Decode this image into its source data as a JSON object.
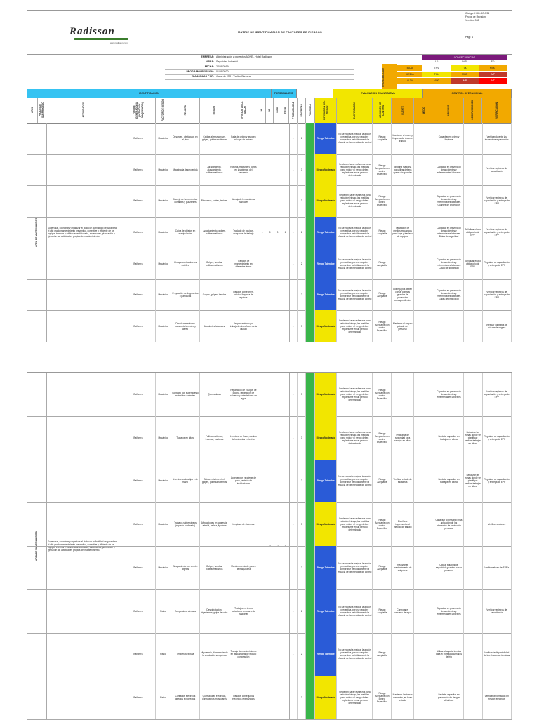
{
  "header": {
    "logo": "Radisson",
    "logo_sub": "www.radisson.com",
    "title": "MATRIZ DE IDENTIFICACION DE FACTORES DE RIESGOS",
    "code": "Código: HSO-SO-P34",
    "revision_date": "Fecha de Revisión:",
    "version": "Versión: 002",
    "page": "Pág.: 1"
  },
  "info": [
    {
      "label": "EMPRESA:",
      "value": "Administración y proyectos ADNE - Hotel Radisson"
    },
    {
      "label": "AREA:",
      "value": "Seguridad Industrial"
    },
    {
      "label": "FECHA:",
      "value": "24/09/2019"
    },
    {
      "label": "PROGRAMA REVISION:",
      "value": "01/09/2020"
    },
    {
      "label": "ELABORADO POR:",
      "value": "Jason de ISO - Yvelice Barbara"
    }
  ],
  "matrix": {
    "side_label": "PROBABILIDAD",
    "top_label": "CONSECUENCIAS",
    "cols": [
      "LD",
      "DAÑ",
      "ED"
    ],
    "rows": [
      {
        "label": "BAJA",
        "cells": [
          "TRV",
          "TOL",
          "MOD"
        ],
        "colors": [
          "#ffffff",
          "#f2e600",
          "#f2a900"
        ]
      },
      {
        "label": "MEDIA",
        "cells": [
          "TOL",
          "MOD",
          "IMP"
        ],
        "colors": [
          "#f2e600",
          "#f2a900",
          "#c0392b"
        ]
      },
      {
        "label": "ALTA",
        "cells": [
          "MOD",
          "IMP",
          "INT"
        ],
        "colors": [
          "#f2a900",
          "#c0392b",
          "#ff0000"
        ]
      }
    ]
  },
  "bands": {
    "identificacion": "IDENTIFICACION",
    "personal": "PERSONAL EXP",
    "evaluacion": "EVALUACION CUANTITATIVA",
    "control": "CONTROL OPERACIONAL"
  },
  "columns": [
    "AREA",
    "PROCESO / SUBPROCESO",
    "ACTIVIDADES",
    "FUENTE GENERADORA (ACTIVIDAD/ MAQUINARIA)",
    "FACTOR DE RIESGO",
    "PELIGRO",
    "RIESGO",
    "EFECTOS DE LA SALUD",
    "H",
    "M",
    "DISC",
    "TOTAL",
    "PROBABILIDAD",
    "SEVERIDAD",
    "PRIORIDAD",
    "ESTIMACION DEL RIESGO",
    "JUSTIFICACION",
    "ACCIONES DE CONTROL",
    "FUENTE",
    "MEDIO",
    "INDIVIDUO",
    "OBSERVACIONES",
    "VERIFICACION"
  ],
  "process": "AREA DE MANTENIMIENTO",
  "activity": "Supervisar, coordinar y organizar el ciclo con la finalidad de garantizar el alto grado mantenimiento preventivo, corrective y eficiente de los equipos internos y edificio acondicionado, ascensores, planeación y ejecución las actividades propias del mantenimiento.",
  "personal": {
    "h": "1",
    "m": "0",
    "disc": "0",
    "total": "1"
  },
  "rows_p1": [
    {
      "fuente": "Bañarera",
      "factor": "Mecánico",
      "peligro": "Desorden, obstáculos en el piso",
      "riesgo": "Caídas al mismo nivel, golpes, politraumatismos",
      "efectos": "Falta de orden y aseo en el lugar de trabajo",
      "prob": "1",
      "sev": "2",
      "est": "Riesgo Tolerable",
      "just": "No se necesita mejorar la acción preventiva, pero se requiere comprobar periódicamente la eficacia de las medidas de control",
      "accion": "Riesgo Aceptable",
      "fuentec": "Mantener el orden y limpieza del área de trabajo",
      "medio": "",
      "indiv": "Capacitar en orden y limpieza",
      "obs": "",
      "verif": "Verificar durante las inspecciones planeadas",
      "color": "b"
    },
    {
      "fuente": "Bañarera",
      "factor": "Mecánico",
      "peligro": "Maquinaria desprotegida",
      "riesgo": "Atrapamiento, atascamiento, politraumatismos",
      "efectos": "Roturas, fracturas y cortes en las piernas del trabajador",
      "prob": "1",
      "sev": "3",
      "est": "Riesgo Moderado",
      "just": "Se deben hacer esfuerzos para reducir el riesgo, las medidas para reducir el riesgo deben implantarse en un periodo determinado",
      "accion": "Riesgo Aceptable con control Específico",
      "fuentec": "Ninguna maquina por utilizar deberá operar sin guardas",
      "medio": "",
      "indiv": "Capacitar en prevención de accidentes y enfermedades laborales",
      "obs": "",
      "verif": "Verificar registros de capacitación",
      "color": "y"
    },
    {
      "fuente": "Bañarera",
      "factor": "Mecánico",
      "peligro": "Manejo de herramientas cortantes y punzantes",
      "riesgo": "Pinchazos, cortes, heridas",
      "efectos": "Manejo de herramientas manuales",
      "prob": "1",
      "sev": "3",
      "est": "Riesgo Moderado",
      "just": "Se deben hacer esfuerzos para reducir el riesgo, las medidas para reducir el riesgo deben implantarse en un periodo determinado",
      "accion": "Riesgo Aceptable con control Específico",
      "fuentec": "",
      "medio": "",
      "indiv": "Capacitar en prevención de accidentes y enfermedades laborales. Guantes de protección",
      "obs": "",
      "verif": "Verificar registros de capacitación y entrega de EPP",
      "color": "y"
    },
    {
      "fuente": "Bañarera",
      "factor": "Mecánico",
      "peligro": "Caída de objetos en manipulación",
      "riesgo": "Aplastamiento, golpes, politraumatismos",
      "efectos": "Traslado de equipos, maquinas de trabajo",
      "prob": "1",
      "sev": "2",
      "est": "Riesgo Tolerable",
      "just": "No se necesita mejorar la acción preventiva, pero se requiere comprobar periódicamente la eficacia de las medidas de control",
      "accion": "Riesgo Aceptable",
      "fuentec": "Utilización de medios mecánicos para izaje y traslado de equipos",
      "medio": "",
      "indiv": "Capacitar en prevención de accidentes y enfermedades laborales. Botas de seguridad",
      "obs": "Señalizar el uso obligatorio de EPP",
      "verif": "Verificar registros de capacitación y entrega de EPP",
      "color": "b"
    },
    {
      "fuente": "Bañarera",
      "factor": "Mecánico",
      "peligro": "Choque contra objetos móviles",
      "riesgo": "Golpes, heridas, politraumatismos",
      "efectos": "Trabajos de mantenimiento en diferentes áreas",
      "prob": "1",
      "sev": "2",
      "est": "Riesgo Tolerable",
      "just": "No se necesita mejorar la acción preventiva, pero se requiere comprobar periódicamente la eficacia de las medidas de control",
      "accion": "Riesgo Aceptable",
      "fuentec": "",
      "medio": "",
      "indiv": "Capacitar en prevención de accidentes y enfermedades laborales. Casco de seguridad",
      "obs": "Señalizar el uso obligatorio de EPP",
      "verif": "Registros de capacitación y entrega de EPP",
      "color": "b"
    },
    {
      "fuente": "Bañarera",
      "factor": "Mecánico",
      "peligro": "Proyección de fragmentos o partículas",
      "riesgo": "Golpes, golpes, heridas",
      "efectos": "Trabajos con esmeril, taladro, limpieza de equipos",
      "prob": "1",
      "sev": "2",
      "est": "Riesgo Tolerable",
      "just": "No se necesita mejorar la acción preventiva, pero se requiere comprobar periódicamente la eficacia de las medidas de control",
      "accion": "Riesgo Aceptable",
      "fuentec": "Los equipos deben contar con sus guardas de protección correspondientes",
      "medio": "",
      "indiv": "Capacitar en prevención de accidentes y enfermedades laborales. Gafas de protección",
      "obs": "",
      "verif": "Verificar registros de capacitación y entrega de EPP",
      "color": "b"
    },
    {
      "fuente": "Bañarera",
      "factor": "Mecánico",
      "peligro": "Desplazamiento en transporte terrestre y aéreo",
      "riesgo": "Accidentes laborales",
      "efectos": "Desplazamiento por trabajo dentro o fuera de la ciudad",
      "prob": "1",
      "sev": "3",
      "est": "Riesgo Moderado",
      "just": "Se deben hacer esfuerzos para reducir el riesgo, las medidas para reducir el riesgo deben implantarse en un periodo determinado",
      "accion": "Riesgo Aceptable con control Específico",
      "fuentec": "Mantener el seguro privado del personal",
      "medio": "",
      "indiv": "",
      "obs": "",
      "verif": "Verificar contratos de pólizas de seguro",
      "color": "y"
    }
  ],
  "rows_p2": [
    {
      "fuente": "Bañarera",
      "factor": "Mecánico",
      "peligro": "Contacto con superficies o materiales calientes",
      "riesgo": "Quemaduras",
      "efectos": "Reparación de equipos de cocina, reparación de calderas y calentadores de agua",
      "prob": "1",
      "sev": "3",
      "est": "Riesgo Moderado",
      "just": "Se deben hacer esfuerzos para reducir el riesgo, las medidas para reducir el riesgo deben implantarse en un periodo determinado",
      "accion": "Riesgo Aceptable con control Específico",
      "fuentec": "",
      "medio": "",
      "indiv": "Capacitar en prevención de accidentes y enfermedades laborales",
      "obs": "",
      "verif": "Verificar registros de capacitación y entrega de EPP",
      "color": "y"
    },
    {
      "fuente": "Bañarera",
      "factor": "Mecánico",
      "peligro": "Trabajos en altura",
      "riesgo": "Politraumatismos, traumas, fracturas",
      "efectos": "Limpieza de fosos, cambio de luminarias en techos",
      "prob": "1",
      "sev": "3",
      "est": "Riesgo Moderado",
      "just": "Se deben hacer esfuerzos para reducir el riesgo, las medidas para reducir el riesgo deben implantarse en un periodo determinado",
      "accion": "Riesgo Aceptable con control Específico",
      "fuentec": "Programa de seguridad para trabajos en altura",
      "medio": "",
      "indiv": "Se debe capacitar en trabajos en altura",
      "obs": "Señalizar las zonas donde se planifique realizar trabajos en altura",
      "verif": "Registros de capacitación y entrega de EPP",
      "color": "y"
    },
    {
      "fuente": "Bañarera",
      "factor": "Mecánico",
      "peligro": "Uso de escalera tipo y de mano",
      "riesgo": "Caída a distinto nivel, golpes, politraumatismos",
      "efectos": "Acceder por escaleras de paso, revisión de instalaciones",
      "prob": "1",
      "sev": "2",
      "est": "Riesgo Tolerable",
      "just": "No se necesita mejorar la acción preventiva, pero se requiere comprobar periódicamente la eficacia de las medidas de control",
      "accion": "Riesgo Aceptable",
      "fuentec": "Verificar estado de escaleras",
      "medio": "",
      "indiv": "Se debe capacitar en trabajos en altura",
      "obs": "Señalizar las zonas donde se planifique realizar trabajos en altura",
      "verif": "Registros de capacitación y entrega de EPP",
      "color": "b"
    },
    {
      "fuente": "Bañarera",
      "factor": "Mecánico",
      "peligro": "Trabajos subterráneos (espacio confinado)",
      "riesgo": "Afectaciones en la presión arterial, asfixia, lipotimia",
      "efectos": "Limpieza de cisternas",
      "prob": "1",
      "sev": "3",
      "est": "Riesgo Moderado",
      "just": "Se deben hacer esfuerzos para reducir el riesgo, las medidas para reducir el riesgo deben implantarse en un periodo determinado",
      "accion": "Riesgo Aceptable con control Específico",
      "fuentec": "Diseñar e implementar el método de trabajo",
      "medio": "",
      "indiv": "Capacitar al personal en la aplicación de los elementos de protección personal",
      "obs": "",
      "verif": "Verificar acciones",
      "color": "y"
    },
    {
      "fuente": "Bañarera",
      "factor": "Mecánico",
      "peligro": "Atrapamiento por o entre objetos",
      "riesgo": "Golpes, heridas, politraumatismos",
      "efectos": "Mantenimiento de partes de maquinaria",
      "prob": "1",
      "sev": "2",
      "est": "Riesgo Tolerable",
      "just": "No se necesita mejorar la acción preventiva, pero se requiere comprobar periódicamente la eficacia de las medidas de control",
      "accion": "Riesgo Aceptable",
      "fuentec": "Realizar el mantenimiento de máquinas",
      "medio": "",
      "indiv": "Utilizar equipos de seguridad, guantes, casco protector",
      "obs": "",
      "verif": "Verificar el uso de EPP's",
      "color": "b"
    },
    {
      "fuente": "Bañarera",
      "factor": "Físico",
      "peligro": "Temperatura elevada",
      "riesgo": "Deshidratación, hipertermia, golpe de calor",
      "efectos": "Trabajos en áreas calientes o en cuarto de máquinas",
      "prob": "1",
      "sev": "2",
      "est": "Riesgo Tolerable",
      "just": "No se necesita mejorar la acción preventiva, pero se requiere comprobar periódicamente la eficacia de las medidas de control",
      "accion": "Riesgo Aceptable",
      "fuentec": "Controlar el consumo de agua",
      "medio": "",
      "indiv": "Capacitar en prevención de accidentes y enfermedades laborales",
      "obs": "",
      "verif": "Verificar registros de capacitación",
      "color": "b"
    },
    {
      "fuente": "Bañarera",
      "factor": "Físico",
      "peligro": "Temperatura baja",
      "riesgo": "Hipotermia, disminución de la circulación sanguínea",
      "efectos": "Trabajo de mantenimiento en las cámaras de frío y/o congelación",
      "prob": "1",
      "sev": "2",
      "est": "Riesgo Tolerable",
      "just": "No se necesita mejorar la acción preventiva, pero se requiere comprobar periódicamente la eficacia de las medidas de control",
      "accion": "Riesgo Aceptable",
      "fuentec": "",
      "medio": "",
      "indiv": "Utilizar chaqueta térmica para el ingreso a cámaras de frío",
      "obs": "",
      "verif": "Verificar la disponibilidad de las chaquetas térmicas",
      "color": "b"
    },
    {
      "fuente": "Bañarera",
      "factor": "Físico",
      "peligro": "Contactos eléctricos directos e indirectos",
      "riesgo": "Quemaduras eléctricas, contracturas musculares",
      "efectos": "Trabajos con equipos eléctricos energizados",
      "prob": "1",
      "sev": "3",
      "est": "Riesgo Moderado",
      "just": "Se deben hacer esfuerzos para reducir el riesgo, las medidas para reducir el riesgo deben implantarse en un periodo determinado",
      "accion": "Riesgo Aceptable con control Específico",
      "fuentec": "Mantener las tomas corrientes, en buen estado",
      "medio": "",
      "indiv": "Se debe capacitar en prevención de riesgos eléctricos",
      "obs": "",
      "verif": "Verificar la formación en riesgos eléctricos",
      "color": "y"
    }
  ]
}
